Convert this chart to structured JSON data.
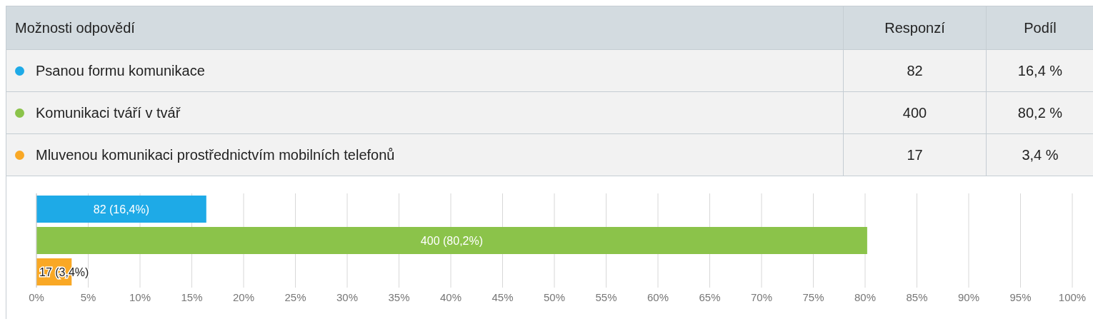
{
  "chart_data": {
    "type": "bar",
    "orientation": "horizontal",
    "categories": [
      null,
      null,
      null
    ],
    "values": [
      16.4,
      80.2,
      3.4
    ],
    "colors": [
      "#1eaae7",
      "#8bc34a",
      "#f9a825"
    ],
    "value_labels": [
      "82 (16,4%)",
      "400 (80,2%)",
      "17 (3,4%)"
    ],
    "annotations": [
      "Možnosti odpovědí",
      "Responzí",
      "Podíl",
      "Psanou formu komunikace",
      "82",
      "16,4 %",
      "Komunikaci tváří v tvář",
      "400",
      "80,2 %",
      "Mluvenou komunikaci prostřednictvím mobilních telefonů",
      "17",
      "3,4 %"
    ],
    "xlim": [
      0,
      100
    ],
    "xticks": [
      {
        "value": 0,
        "label": "0%"
      },
      {
        "value": 5,
        "label": "5%"
      },
      {
        "value": 10,
        "label": "10%"
      },
      {
        "value": 15,
        "label": "15%"
      },
      {
        "value": 20,
        "label": "20%"
      },
      {
        "value": 25,
        "label": "25%"
      },
      {
        "value": 30,
        "label": "30%"
      },
      {
        "value": 35,
        "label": "35%"
      },
      {
        "value": 40,
        "label": "40%"
      },
      {
        "value": 45,
        "label": "45%"
      },
      {
        "value": 50,
        "label": "50%"
      },
      {
        "value": 55,
        "label": "55%"
      },
      {
        "value": 60,
        "label": "60%"
      },
      {
        "value": 65,
        "label": "65%"
      },
      {
        "value": 70,
        "label": "70%"
      },
      {
        "value": 75,
        "label": "75%"
      },
      {
        "value": 80,
        "label": "80%"
      },
      {
        "value": 85,
        "label": "85%"
      },
      {
        "value": 90,
        "label": "90%"
      },
      {
        "value": 95,
        "label": "95%"
      },
      {
        "value": 100,
        "label": "100%"
      }
    ],
    "grid": "x"
  }
}
